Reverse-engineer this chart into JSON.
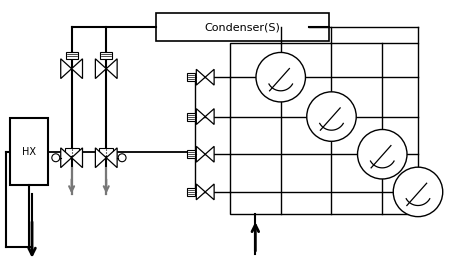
{
  "bg_color": "#ffffff",
  "line_color": "#000000",
  "gray_color": "#777777",
  "figsize": [
    4.52,
    2.68
  ],
  "dpi": 100,
  "condenser_label": "Condenser(S)",
  "hx_label": "HX"
}
